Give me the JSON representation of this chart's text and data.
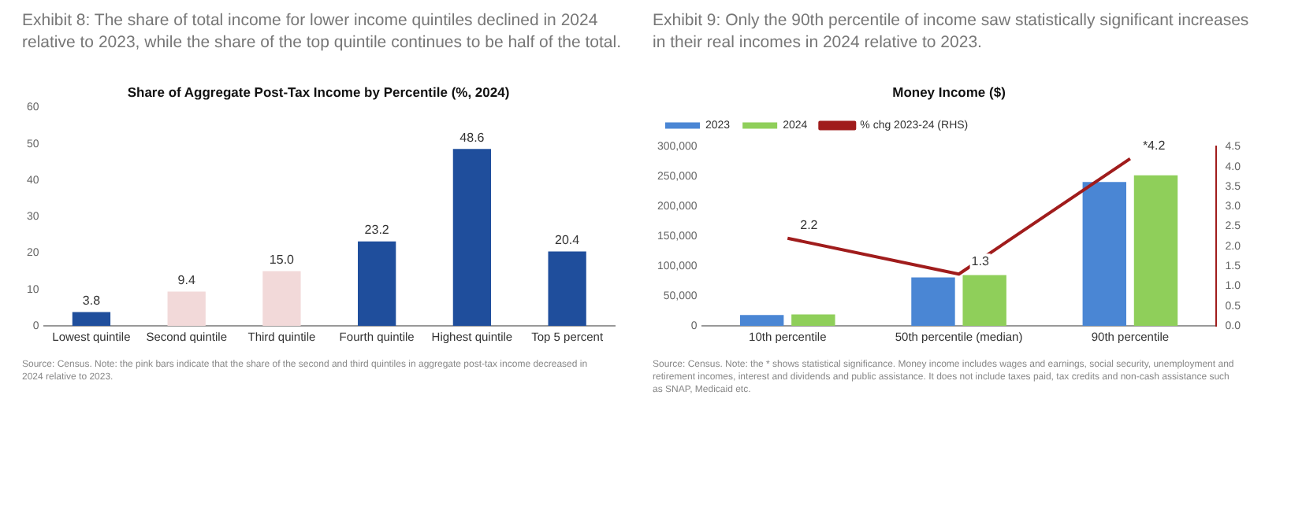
{
  "chart_data": [
    {
      "type": "bar",
      "title": "Exhibit 8:  The share of total income for lower income quintiles declined in 2024 relative to 2023, while the share of the top quintile continues to be half of the total.",
      "subtitle": "Share of Aggregate Post-Tax Income by Percentile (%, 2024)",
      "categories": [
        "Lowest quintile",
        "Second quintile",
        "Third quintile",
        "Fourth quintile",
        "Highest quintile",
        "Top 5 percent"
      ],
      "values": [
        3.8,
        9.4,
        15.0,
        23.2,
        48.6,
        20.4
      ],
      "colors": [
        "#1f4e9c",
        "#f2d9d9",
        "#f2d9d9",
        "#1f4e9c",
        "#1f4e9c",
        "#1f4e9c"
      ],
      "value_labels": [
        "3.8",
        "9.4",
        "15.0",
        "23.2",
        "48.6",
        "20.4"
      ],
      "ylim": [
        0,
        60
      ],
      "yticks": [
        0,
        10,
        20,
        30,
        40,
        50,
        60
      ],
      "annotations": [
        "Source: Census. Note: the pink bars indicate that the share of the second and third quintiles in aggregate post-tax income decreased in 2024 relative to 2023."
      ]
    },
    {
      "type": "bar",
      "title": "Exhibit 9:  Only the 90th percentile of income saw statistically significant increases in their real incomes in 2024 relative to 2023.",
      "subtitle": "Money Income ($)",
      "categories": [
        "10th percentile",
        "50th percentile (median)",
        "90th percentile"
      ],
      "series": [
        {
          "name": "2023",
          "color": "#4a86d4",
          "values": [
            18000,
            81000,
            241000
          ]
        },
        {
          "name": "2024",
          "color": "#8fcf5a",
          "values": [
            19000,
            85000,
            252000
          ]
        },
        {
          "name": "% chg 2023-24 (RHS)",
          "type": "line",
          "axis": "y2",
          "color": "#a01c1c",
          "values": [
            2.2,
            1.3,
            4.2
          ],
          "value_labels": [
            "2.2",
            "1.3",
            "*4.2"
          ]
        }
      ],
      "ylim": [
        0,
        300000
      ],
      "yticks": [
        0,
        {
          "value": 50000,
          "label": "50,000"
        },
        {
          "value": 100000,
          "label": "100,000"
        },
        {
          "value": 150000,
          "label": "150,000"
        },
        {
          "value": 200000,
          "label": "200,000"
        },
        {
          "value": 250000,
          "label": "250,000"
        },
        {
          "value": 300000,
          "label": "300,000"
        }
      ],
      "y2lim": [
        0,
        4.5
      ],
      "y2ticks": [
        {
          "value": 0,
          "label": "0.0"
        },
        0.5,
        {
          "value": 1,
          "label": "1.0"
        },
        1.5,
        {
          "value": 2,
          "label": "2.0"
        },
        2.5,
        {
          "value": 3,
          "label": "3.0"
        },
        3.5,
        {
          "value": 4,
          "label": "4.0"
        },
        4.5
      ],
      "legend": "top left",
      "annotations": [
        "Source: Census. Note: the * shows statistical significance. Money income includes wages and earnings, social security, unemployment and retirement incomes, interest and dividends and public assistance. It does not include taxes paid, tax credits and non-cash assistance such as SNAP, Medicaid etc."
      ]
    }
  ]
}
